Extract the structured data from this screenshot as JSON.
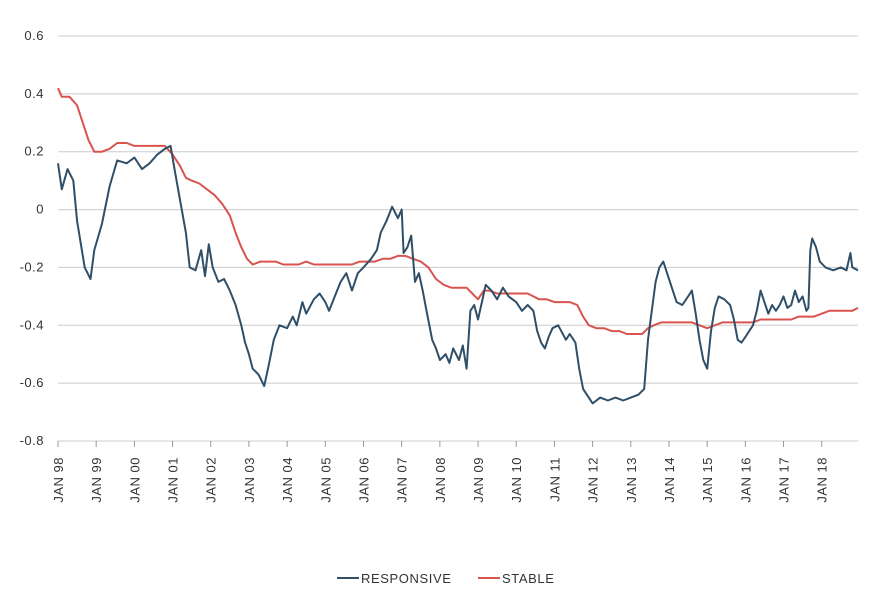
{
  "chart_data": {
    "type": "line",
    "title": "",
    "xlabel": "",
    "ylabel": "",
    "ylim": [
      -0.8,
      0.6
    ],
    "yticks": [
      0.6,
      0.4,
      0.2,
      0,
      -0.2,
      -0.4,
      -0.6,
      -0.8
    ],
    "ytick_labels": [
      "0.6",
      "0.4",
      "0.2",
      "0",
      "-0.2",
      "-0.4",
      "-0.6",
      "-0.8"
    ],
    "xlim": [
      1998.0,
      2018.95
    ],
    "x_tick_positions": [
      1998,
      1999,
      2000,
      2001,
      2002,
      2003,
      2004,
      2005,
      2006,
      2007,
      2008,
      2009,
      2010,
      2011,
      2012,
      2013,
      2014,
      2015,
      2016,
      2017,
      2018
    ],
    "x_tick_labels": [
      "JAN 98",
      "JAN 99",
      "JAN 00",
      "JAN 01",
      "JAN 02",
      "JAN 03",
      "JAN 04",
      "JAN 05",
      "JAN 06",
      "JAN 07",
      "JAN 08",
      "JAN 09",
      "JAN 10",
      "JAN 11",
      "JAN 12",
      "JAN 13",
      "JAN 14",
      "JAN 15",
      "JAN 16",
      "JAN 17",
      "JAN 18"
    ],
    "grid": true,
    "legend_position": "bottom-center",
    "series": [
      {
        "name": "RESPONSIVE",
        "color": "#2f4f68",
        "points": [
          [
            1998.0,
            0.16
          ],
          [
            1998.1,
            0.07
          ],
          [
            1998.25,
            0.14
          ],
          [
            1998.4,
            0.1
          ],
          [
            1998.5,
            -0.04
          ],
          [
            1998.6,
            -0.12
          ],
          [
            1998.7,
            -0.2
          ],
          [
            1998.85,
            -0.24
          ],
          [
            1998.95,
            -0.14
          ],
          [
            1999.15,
            -0.05
          ],
          [
            1999.35,
            0.08
          ],
          [
            1999.55,
            0.17
          ],
          [
            1999.8,
            0.16
          ],
          [
            2000.0,
            0.18
          ],
          [
            2000.2,
            0.14
          ],
          [
            2000.4,
            0.16
          ],
          [
            2000.6,
            0.19
          ],
          [
            2000.8,
            0.21
          ],
          [
            2000.95,
            0.22
          ],
          [
            2001.05,
            0.14
          ],
          [
            2001.2,
            0.03
          ],
          [
            2001.35,
            -0.08
          ],
          [
            2001.45,
            -0.2
          ],
          [
            2001.6,
            -0.21
          ],
          [
            2001.75,
            -0.14
          ],
          [
            2001.85,
            -0.23
          ],
          [
            2001.95,
            -0.12
          ],
          [
            2002.05,
            -0.2
          ],
          [
            2002.2,
            -0.25
          ],
          [
            2002.35,
            -0.24
          ],
          [
            2002.5,
            -0.28
          ],
          [
            2002.65,
            -0.33
          ],
          [
            2002.8,
            -0.4
          ],
          [
            2002.9,
            -0.46
          ],
          [
            2003.0,
            -0.5
          ],
          [
            2003.1,
            -0.55
          ],
          [
            2003.25,
            -0.57
          ],
          [
            2003.4,
            -0.61
          ],
          [
            2003.5,
            -0.55
          ],
          [
            2003.65,
            -0.45
          ],
          [
            2003.8,
            -0.4
          ],
          [
            2004.0,
            -0.41
          ],
          [
            2004.15,
            -0.37
          ],
          [
            2004.25,
            -0.4
          ],
          [
            2004.4,
            -0.32
          ],
          [
            2004.5,
            -0.36
          ],
          [
            2004.7,
            -0.31
          ],
          [
            2004.85,
            -0.29
          ],
          [
            2005.0,
            -0.32
          ],
          [
            2005.1,
            -0.35
          ],
          [
            2005.25,
            -0.3
          ],
          [
            2005.4,
            -0.25
          ],
          [
            2005.55,
            -0.22
          ],
          [
            2005.7,
            -0.28
          ],
          [
            2005.85,
            -0.22
          ],
          [
            2006.0,
            -0.2
          ],
          [
            2006.2,
            -0.17
          ],
          [
            2006.35,
            -0.14
          ],
          [
            2006.45,
            -0.08
          ],
          [
            2006.6,
            -0.04
          ],
          [
            2006.75,
            0.01
          ],
          [
            2006.9,
            -0.03
          ],
          [
            2007.0,
            0.0
          ],
          [
            2007.05,
            -0.15
          ],
          [
            2007.15,
            -0.13
          ],
          [
            2007.25,
            -0.09
          ],
          [
            2007.35,
            -0.25
          ],
          [
            2007.45,
            -0.22
          ],
          [
            2007.55,
            -0.28
          ],
          [
            2007.65,
            -0.35
          ],
          [
            2007.8,
            -0.45
          ],
          [
            2007.9,
            -0.48
          ],
          [
            2008.0,
            -0.52
          ],
          [
            2008.15,
            -0.5
          ],
          [
            2008.25,
            -0.53
          ],
          [
            2008.35,
            -0.48
          ],
          [
            2008.5,
            -0.52
          ],
          [
            2008.6,
            -0.47
          ],
          [
            2008.7,
            -0.55
          ],
          [
            2008.8,
            -0.35
          ],
          [
            2008.9,
            -0.33
          ],
          [
            2009.0,
            -0.38
          ],
          [
            2009.1,
            -0.32
          ],
          [
            2009.2,
            -0.26
          ],
          [
            2009.35,
            -0.28
          ],
          [
            2009.5,
            -0.31
          ],
          [
            2009.65,
            -0.27
          ],
          [
            2009.8,
            -0.3
          ],
          [
            2010.0,
            -0.32
          ],
          [
            2010.15,
            -0.35
          ],
          [
            2010.3,
            -0.33
          ],
          [
            2010.45,
            -0.35
          ],
          [
            2010.55,
            -0.42
          ],
          [
            2010.65,
            -0.46
          ],
          [
            2010.75,
            -0.48
          ],
          [
            2010.85,
            -0.44
          ],
          [
            2010.95,
            -0.41
          ],
          [
            2011.1,
            -0.4
          ],
          [
            2011.3,
            -0.45
          ],
          [
            2011.4,
            -0.43
          ],
          [
            2011.55,
            -0.46
          ],
          [
            2011.65,
            -0.55
          ],
          [
            2011.75,
            -0.62
          ],
          [
            2011.9,
            -0.65
          ],
          [
            2012.0,
            -0.67
          ],
          [
            2012.2,
            -0.65
          ],
          [
            2012.4,
            -0.66
          ],
          [
            2012.6,
            -0.65
          ],
          [
            2012.8,
            -0.66
          ],
          [
            2013.0,
            -0.65
          ],
          [
            2013.2,
            -0.64
          ],
          [
            2013.35,
            -0.62
          ],
          [
            2013.45,
            -0.45
          ],
          [
            2013.55,
            -0.35
          ],
          [
            2013.65,
            -0.25
          ],
          [
            2013.75,
            -0.2
          ],
          [
            2013.85,
            -0.18
          ],
          [
            2013.95,
            -0.22
          ],
          [
            2014.05,
            -0.26
          ],
          [
            2014.2,
            -0.32
          ],
          [
            2014.35,
            -0.33
          ],
          [
            2014.5,
            -0.3
          ],
          [
            2014.6,
            -0.28
          ],
          [
            2014.7,
            -0.36
          ],
          [
            2014.8,
            -0.45
          ],
          [
            2014.9,
            -0.52
          ],
          [
            2015.0,
            -0.55
          ],
          [
            2015.1,
            -0.42
          ],
          [
            2015.2,
            -0.34
          ],
          [
            2015.3,
            -0.3
          ],
          [
            2015.45,
            -0.31
          ],
          [
            2015.6,
            -0.33
          ],
          [
            2015.7,
            -0.38
          ],
          [
            2015.8,
            -0.45
          ],
          [
            2015.9,
            -0.46
          ],
          [
            2016.0,
            -0.44
          ],
          [
            2016.1,
            -0.42
          ],
          [
            2016.2,
            -0.4
          ],
          [
            2016.3,
            -0.35
          ],
          [
            2016.4,
            -0.28
          ],
          [
            2016.5,
            -0.32
          ],
          [
            2016.6,
            -0.36
          ],
          [
            2016.7,
            -0.33
          ],
          [
            2016.8,
            -0.35
          ],
          [
            2016.9,
            -0.33
          ],
          [
            2017.0,
            -0.3
          ],
          [
            2017.1,
            -0.34
          ],
          [
            2017.2,
            -0.33
          ],
          [
            2017.3,
            -0.28
          ],
          [
            2017.4,
            -0.32
          ],
          [
            2017.5,
            -0.3
          ],
          [
            2017.6,
            -0.35
          ],
          [
            2017.65,
            -0.34
          ],
          [
            2017.7,
            -0.14
          ],
          [
            2017.75,
            -0.1
          ],
          [
            2017.85,
            -0.13
          ],
          [
            2017.95,
            -0.18
          ],
          [
            2018.1,
            -0.2
          ],
          [
            2018.3,
            -0.21
          ],
          [
            2018.5,
            -0.2
          ],
          [
            2018.65,
            -0.21
          ],
          [
            2018.75,
            -0.15
          ],
          [
            2018.8,
            -0.2
          ],
          [
            2018.95,
            -0.21
          ]
        ]
      },
      {
        "name": "STABLE",
        "color": "#d9534f",
        "points": [
          [
            1998.0,
            0.42
          ],
          [
            1998.1,
            0.39
          ],
          [
            1998.3,
            0.39
          ],
          [
            1998.5,
            0.36
          ],
          [
            1998.65,
            0.3
          ],
          [
            1998.8,
            0.24
          ],
          [
            1998.95,
            0.2
          ],
          [
            1999.15,
            0.2
          ],
          [
            1999.35,
            0.21
          ],
          [
            1999.55,
            0.23
          ],
          [
            1999.8,
            0.23
          ],
          [
            2000.0,
            0.22
          ],
          [
            2000.2,
            0.22
          ],
          [
            2000.4,
            0.22
          ],
          [
            2000.6,
            0.22
          ],
          [
            2000.8,
            0.22
          ],
          [
            2001.0,
            0.19
          ],
          [
            2001.2,
            0.15
          ],
          [
            2001.35,
            0.11
          ],
          [
            2001.5,
            0.1
          ],
          [
            2001.7,
            0.09
          ],
          [
            2001.9,
            0.07
          ],
          [
            2002.1,
            0.05
          ],
          [
            2002.3,
            0.02
          ],
          [
            2002.5,
            -0.02
          ],
          [
            2002.65,
            -0.08
          ],
          [
            2002.8,
            -0.13
          ],
          [
            2002.95,
            -0.17
          ],
          [
            2003.1,
            -0.19
          ],
          [
            2003.3,
            -0.18
          ],
          [
            2003.5,
            -0.18
          ],
          [
            2003.7,
            -0.18
          ],
          [
            2003.9,
            -0.19
          ],
          [
            2004.1,
            -0.19
          ],
          [
            2004.3,
            -0.19
          ],
          [
            2004.5,
            -0.18
          ],
          [
            2004.7,
            -0.19
          ],
          [
            2004.9,
            -0.19
          ],
          [
            2005.1,
            -0.19
          ],
          [
            2005.3,
            -0.19
          ],
          [
            2005.5,
            -0.19
          ],
          [
            2005.7,
            -0.19
          ],
          [
            2005.9,
            -0.18
          ],
          [
            2006.1,
            -0.18
          ],
          [
            2006.3,
            -0.18
          ],
          [
            2006.5,
            -0.17
          ],
          [
            2006.7,
            -0.17
          ],
          [
            2006.9,
            -0.16
          ],
          [
            2007.1,
            -0.16
          ],
          [
            2007.3,
            -0.17
          ],
          [
            2007.5,
            -0.18
          ],
          [
            2007.7,
            -0.2
          ],
          [
            2007.9,
            -0.24
          ],
          [
            2008.1,
            -0.26
          ],
          [
            2008.3,
            -0.27
          ],
          [
            2008.5,
            -0.27
          ],
          [
            2008.7,
            -0.27
          ],
          [
            2008.85,
            -0.29
          ],
          [
            2009.0,
            -0.31
          ],
          [
            2009.15,
            -0.28
          ],
          [
            2009.3,
            -0.28
          ],
          [
            2009.5,
            -0.29
          ],
          [
            2009.7,
            -0.29
          ],
          [
            2009.9,
            -0.29
          ],
          [
            2010.1,
            -0.29
          ],
          [
            2010.3,
            -0.29
          ],
          [
            2010.45,
            -0.3
          ],
          [
            2010.6,
            -0.31
          ],
          [
            2010.8,
            -0.31
          ],
          [
            2011.0,
            -0.32
          ],
          [
            2011.2,
            -0.32
          ],
          [
            2011.4,
            -0.32
          ],
          [
            2011.6,
            -0.33
          ],
          [
            2011.75,
            -0.37
          ],
          [
            2011.9,
            -0.4
          ],
          [
            2012.1,
            -0.41
          ],
          [
            2012.3,
            -0.41
          ],
          [
            2012.5,
            -0.42
          ],
          [
            2012.7,
            -0.42
          ],
          [
            2012.9,
            -0.43
          ],
          [
            2013.1,
            -0.43
          ],
          [
            2013.3,
            -0.43
          ],
          [
            2013.45,
            -0.41
          ],
          [
            2013.6,
            -0.4
          ],
          [
            2013.8,
            -0.39
          ],
          [
            2014.0,
            -0.39
          ],
          [
            2014.2,
            -0.39
          ],
          [
            2014.4,
            -0.39
          ],
          [
            2014.6,
            -0.39
          ],
          [
            2014.8,
            -0.4
          ],
          [
            2015.0,
            -0.41
          ],
          [
            2015.2,
            -0.4
          ],
          [
            2015.4,
            -0.39
          ],
          [
            2015.6,
            -0.39
          ],
          [
            2015.8,
            -0.39
          ],
          [
            2016.0,
            -0.39
          ],
          [
            2016.2,
            -0.39
          ],
          [
            2016.4,
            -0.38
          ],
          [
            2016.6,
            -0.38
          ],
          [
            2016.8,
            -0.38
          ],
          [
            2017.0,
            -0.38
          ],
          [
            2017.2,
            -0.38
          ],
          [
            2017.4,
            -0.37
          ],
          [
            2017.6,
            -0.37
          ],
          [
            2017.8,
            -0.37
          ],
          [
            2018.0,
            -0.36
          ],
          [
            2018.2,
            -0.35
          ],
          [
            2018.4,
            -0.35
          ],
          [
            2018.6,
            -0.35
          ],
          [
            2018.8,
            -0.35
          ],
          [
            2018.95,
            -0.34
          ]
        ]
      }
    ]
  }
}
